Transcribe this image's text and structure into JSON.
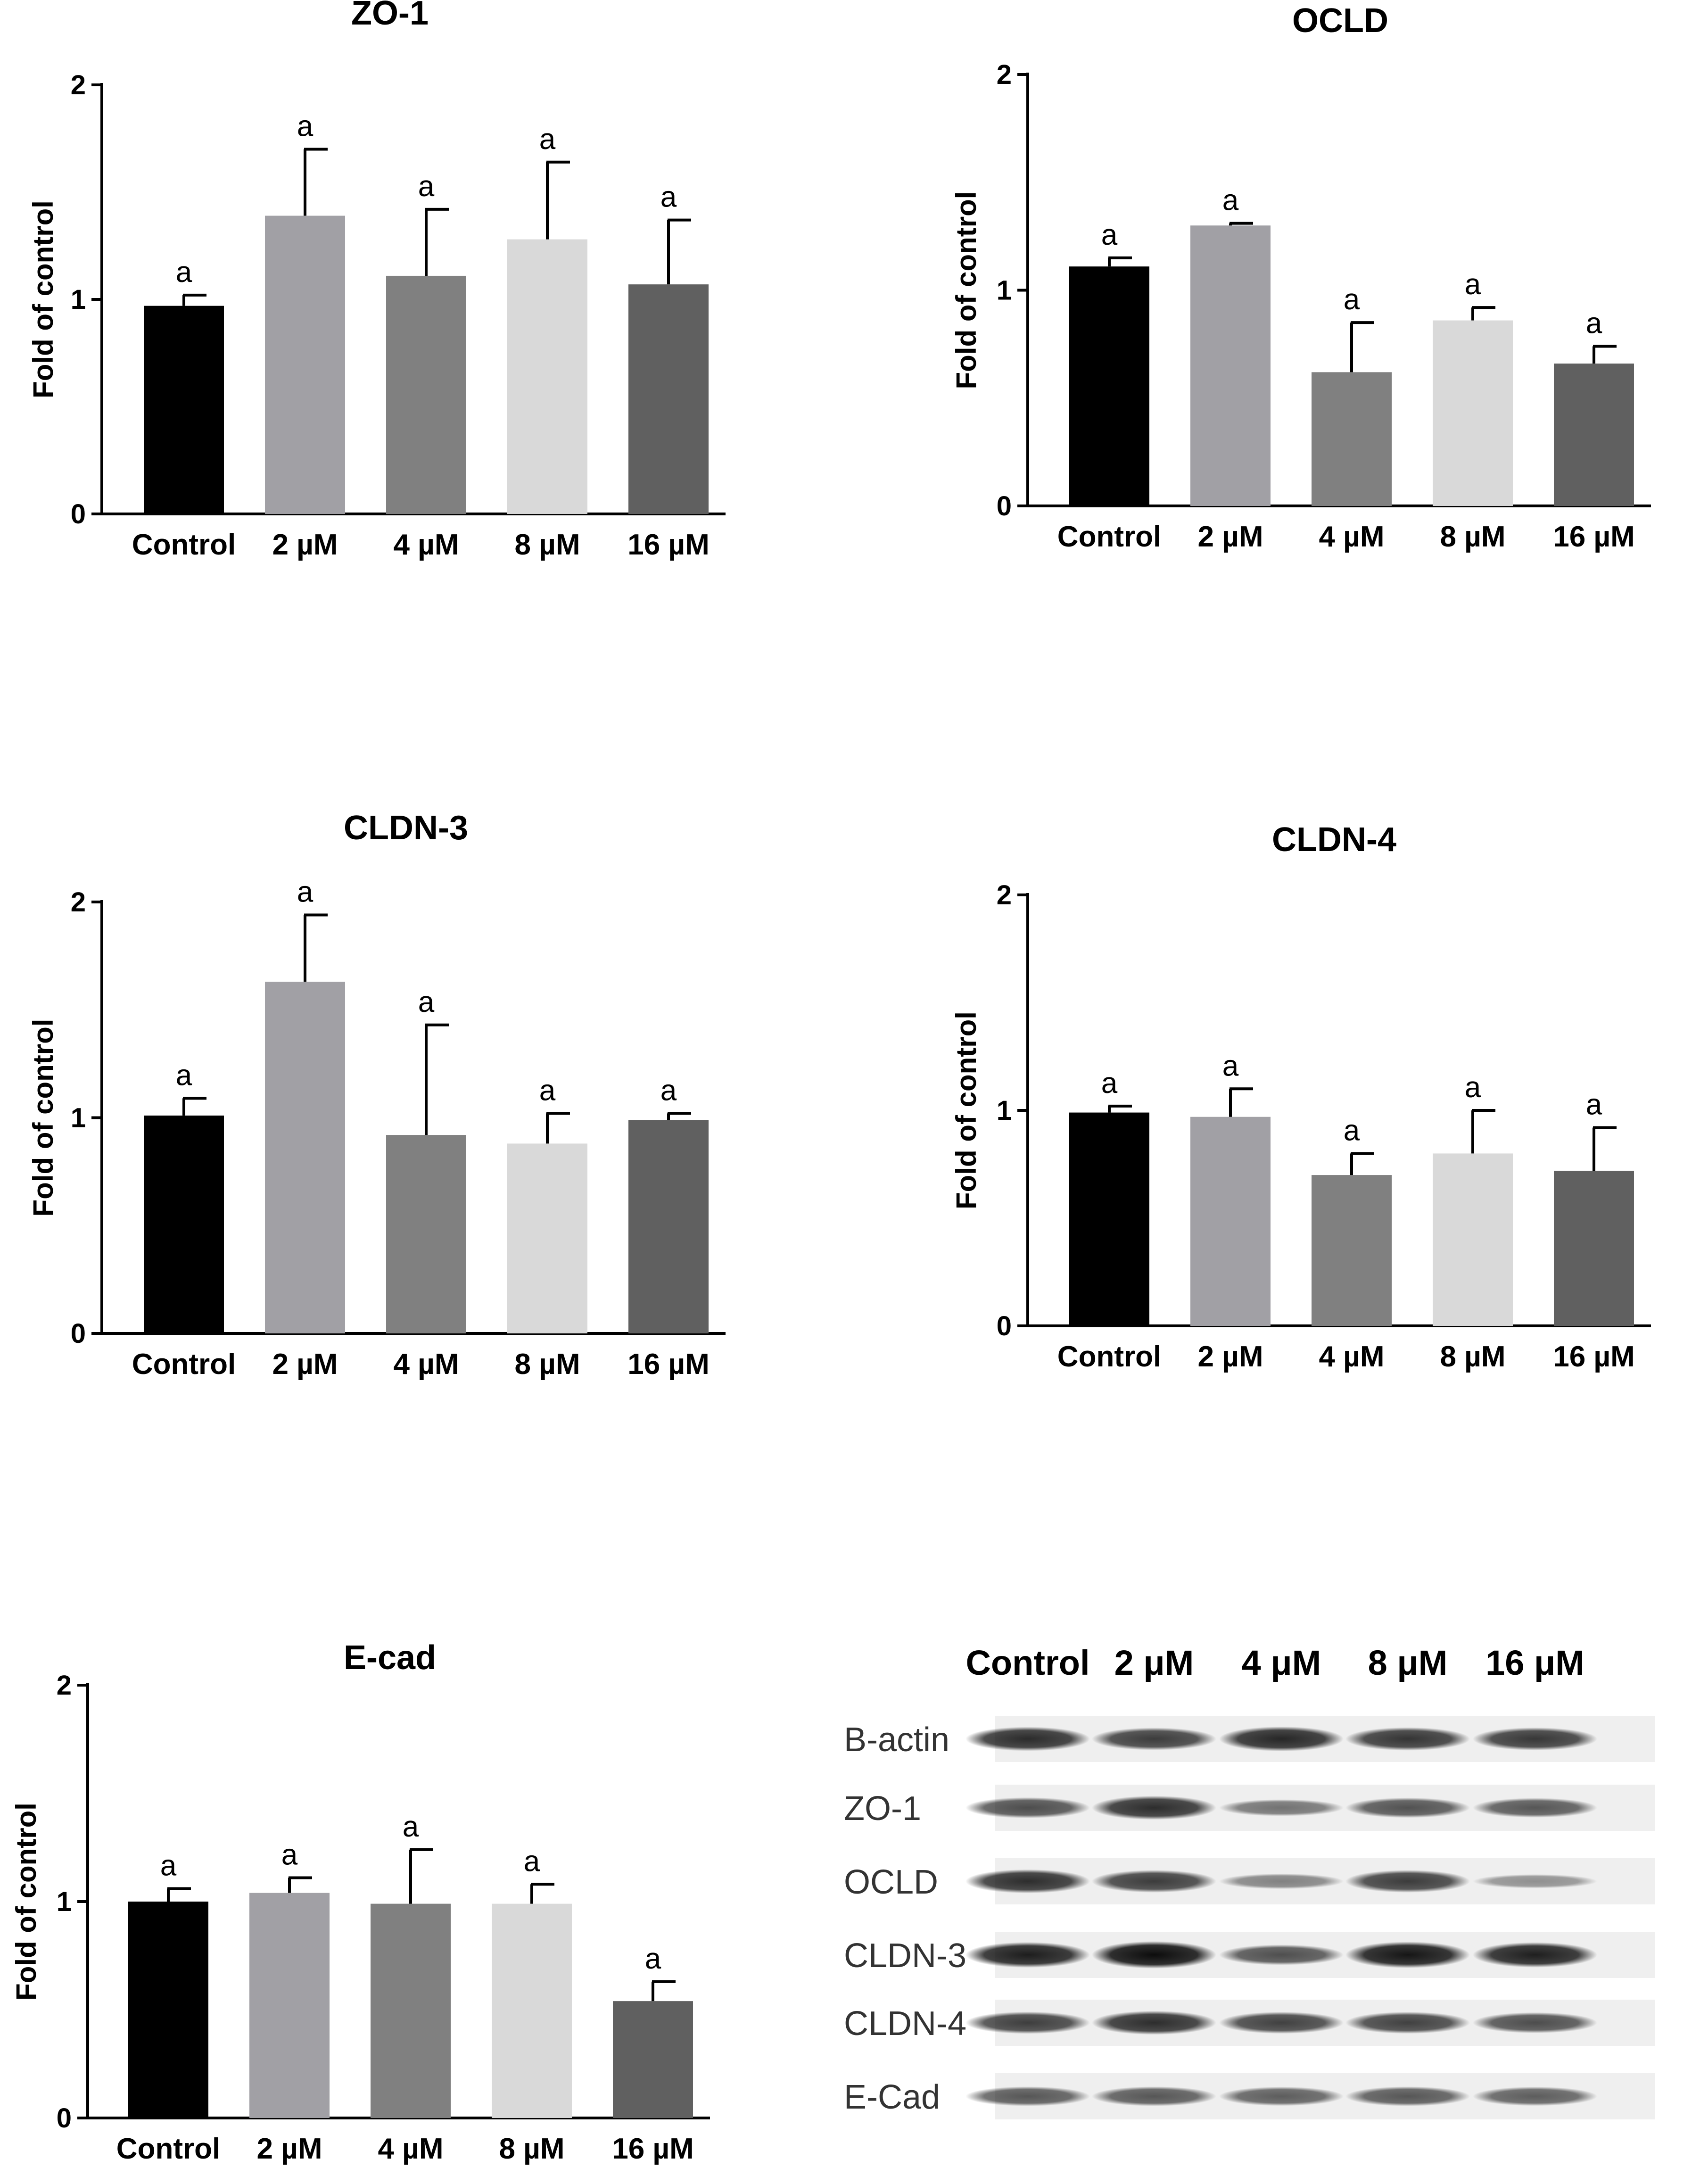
{
  "chart_data": [
    {
      "type": "bar",
      "title": "ZO-1",
      "ylabel": "Fold of control",
      "xlabel": "",
      "ylim": [
        0,
        2
      ],
      "yticks": [
        "0",
        "1",
        "2"
      ],
      "categories": [
        "Control",
        "2 µM",
        "4 µM",
        "8 µM",
        "16 µM"
      ],
      "values": [
        0.97,
        1.39,
        1.11,
        1.28,
        1.07
      ],
      "errors": [
        0.05,
        0.31,
        0.31,
        0.36,
        0.3
      ],
      "significance": [
        "a",
        "a",
        "a",
        "a",
        "a"
      ],
      "colors": [
        "#000000",
        "#a1a0a5",
        "#808080",
        "#d9d9d9",
        "#606060"
      ]
    },
    {
      "type": "bar",
      "title": "OCLD",
      "ylabel": "Fold of control",
      "xlabel": "",
      "ylim": [
        0,
        2
      ],
      "yticks": [
        "0",
        "1",
        "2"
      ],
      "categories": [
        "Control",
        "2 µM",
        "4 µM",
        "8 µM",
        "16 µM"
      ],
      "values": [
        1.11,
        1.3,
        0.62,
        0.86,
        0.66
      ],
      "errors": [
        0.04,
        0.01,
        0.23,
        0.06,
        0.08
      ],
      "significance": [
        "a",
        "a",
        "a",
        "a",
        "a"
      ],
      "colors": [
        "#000000",
        "#a1a0a5",
        "#808080",
        "#d9d9d9",
        "#606060"
      ]
    },
    {
      "type": "bar",
      "title": "CLDN-3",
      "ylabel": "Fold of control",
      "xlabel": "",
      "ylim": [
        0,
        2
      ],
      "yticks": [
        "0",
        "1",
        "2"
      ],
      "categories": [
        "Control",
        "2 µM",
        "4 µM",
        "8 µM",
        "16 µM"
      ],
      "values": [
        1.01,
        1.63,
        0.92,
        0.88,
        0.99
      ],
      "errors": [
        0.08,
        0.31,
        0.51,
        0.14,
        0.03
      ],
      "significance": [
        "a",
        "a",
        "a",
        "a",
        "a"
      ],
      "colors": [
        "#000000",
        "#a1a0a5",
        "#808080",
        "#d9d9d9",
        "#606060"
      ]
    },
    {
      "type": "bar",
      "title": "CLDN-4",
      "ylabel": "Fold of control",
      "xlabel": "",
      "ylim": [
        0,
        2
      ],
      "yticks": [
        "0",
        "1",
        "2"
      ],
      "categories": [
        "Control",
        "2 µM",
        "4 µM",
        "8 µM",
        "16 µM"
      ],
      "values": [
        0.99,
        0.97,
        0.7,
        0.8,
        0.72
      ],
      "errors": [
        0.03,
        0.13,
        0.1,
        0.2,
        0.2
      ],
      "significance": [
        "a",
        "a",
        "a",
        "a",
        "a"
      ],
      "colors": [
        "#000000",
        "#a1a0a5",
        "#808080",
        "#d9d9d9",
        "#606060"
      ]
    },
    {
      "type": "bar",
      "title": "E-cad",
      "ylabel": "Fold of control",
      "xlabel": "",
      "ylim": [
        0,
        2
      ],
      "yticks": [
        "0",
        "1",
        "2"
      ],
      "categories": [
        "Control",
        "2 µM",
        "4 µM",
        "8 µM",
        "16 µM"
      ],
      "values": [
        1.0,
        1.04,
        0.99,
        0.99,
        0.54
      ],
      "errors": [
        0.06,
        0.07,
        0.25,
        0.09,
        0.09
      ],
      "significance": [
        "a",
        "a",
        "a",
        "a",
        "a"
      ],
      "colors": [
        "#000000",
        "#a1a0a5",
        "#808080",
        "#d9d9d9",
        "#606060"
      ]
    }
  ],
  "western_blot": {
    "lanes": [
      "Control",
      "2 μM",
      "4 μM",
      "8 μM",
      "16 μM"
    ],
    "rows": [
      {
        "label": "B-actin",
        "intensity": [
          0.82,
          0.72,
          0.85,
          0.76,
          0.74
        ]
      },
      {
        "label": "ZO-1",
        "intensity": [
          0.62,
          0.8,
          0.38,
          0.58,
          0.55
        ]
      },
      {
        "label": "OCLD",
        "intensity": [
          0.8,
          0.72,
          0.3,
          0.72,
          0.22
        ]
      },
      {
        "label": "CLDN-3",
        "intensity": [
          0.9,
          1.0,
          0.6,
          0.95,
          0.88
        ]
      },
      {
        "label": "CLDN-4",
        "intensity": [
          0.7,
          0.8,
          0.68,
          0.68,
          0.62
        ]
      },
      {
        "label": "E-Cad",
        "intensity": [
          0.55,
          0.55,
          0.52,
          0.55,
          0.52
        ]
      }
    ]
  }
}
